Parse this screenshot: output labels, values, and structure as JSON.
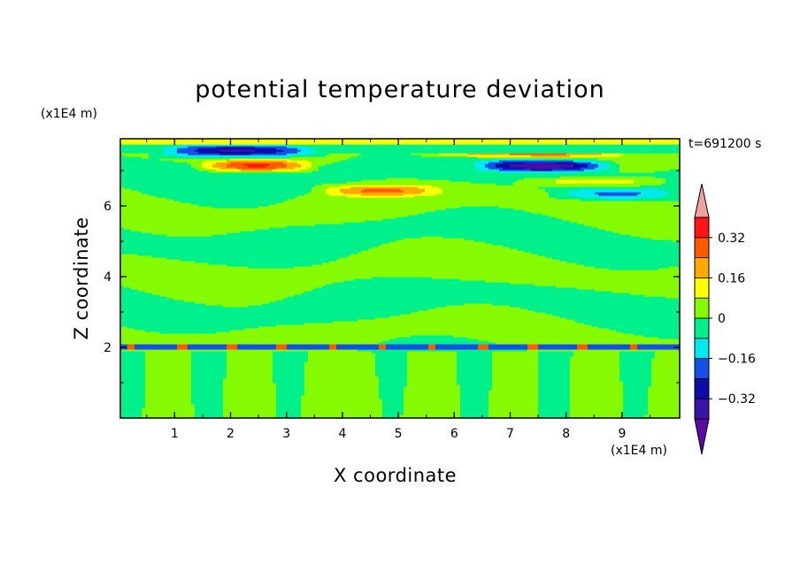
{
  "chart_data": {
    "type": "heatmap",
    "title": "potential temperature deviation",
    "xlabel": "X coordinate",
    "ylabel": "Z coordinate",
    "x_unit": "(x1E4 m)",
    "z_unit": "(x1E4 m)",
    "time_label": "t=691200 s",
    "xlim": [
      0.03,
      10.03
    ],
    "ylim": [
      0,
      7.9
    ],
    "x_ticks": [
      1,
      2,
      3,
      4,
      5,
      6,
      7,
      8,
      9
    ],
    "y_ticks": [
      2,
      4,
      6
    ],
    "colorbar": {
      "levels": [
        -0.48,
        -0.4,
        -0.32,
        -0.24,
        -0.16,
        -0.08,
        0,
        0.08,
        0.16,
        0.24,
        0.32,
        0.4,
        0.48
      ],
      "labeled_levels": [
        {
          "value": 0.32,
          "label": "0.32"
        },
        {
          "value": 0.16,
          "label": "0.16"
        },
        {
          "value": 0,
          "label": "0"
        },
        {
          "value": -0.16,
          "label": "−0.16"
        },
        {
          "value": -0.32,
          "label": "−0.32"
        }
      ],
      "colors": [
        "#5a0aa0",
        "#3a14a8",
        "#0c0ca8",
        "#1450e6",
        "#00e8f0",
        "#00f08c",
        "#86fa00",
        "#ffff00",
        "#ffa800",
        "#ff5a00",
        "#ff1414",
        "#f4a0a0"
      ]
    },
    "bands": [
      {
        "z_range": [
          7.75,
          7.9
        ],
        "value": 0.12,
        "note": "yellow top boundary"
      },
      {
        "z_range": [
          7.5,
          7.75
        ],
        "value": -0.06
      },
      {
        "z_range": [
          7.4,
          7.7
        ],
        "x_range": [
          1.0,
          3.7
        ],
        "value": -0.28
      },
      {
        "z_range": [
          7.4,
          7.7
        ],
        "x_range": [
          5.3,
          8.8
        ],
        "value": 0.2
      },
      {
        "z_range": [
          7.0,
          7.3
        ],
        "x_range": [
          1.5,
          3.4
        ],
        "value": 0.2
      },
      {
        "z_range": [
          7.0,
          7.3
        ],
        "x_range": [
          6.5,
          8.7
        ],
        "value": -0.28
      },
      {
        "z_range": [
          6.3,
          6.6
        ],
        "x_range": [
          3.6,
          5.8
        ],
        "value": 0.12
      },
      {
        "z_range": [
          1.95,
          2.1
        ],
        "value": -0.24,
        "note": "sharp inversion layer near z=2"
      },
      {
        "z_range": [
          0,
          1.9
        ],
        "value": 0.04,
        "note": "convective plumes"
      }
    ]
  }
}
